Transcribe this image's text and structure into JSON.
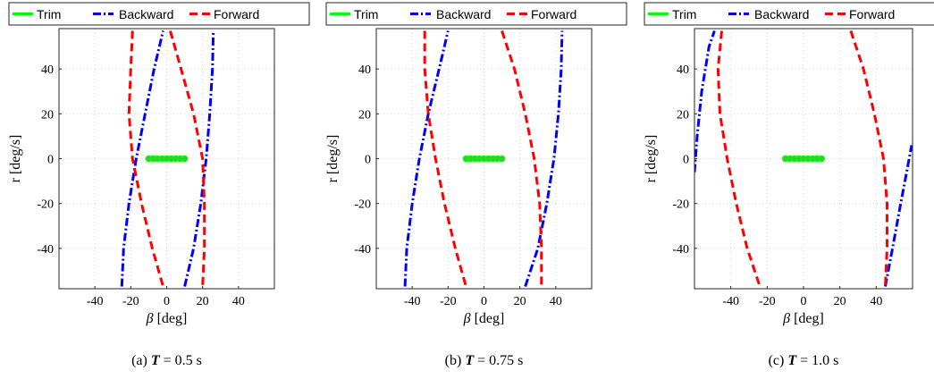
{
  "chart_data": [
    {
      "type": "line",
      "caption_prefix": "(a)",
      "caption_var": "T",
      "caption_rest": " = 0.5 s",
      "xlabel_sym": "β",
      "xlabel_unit": " [deg]",
      "ylabel": "r [deg/s]",
      "xlim": [
        -60,
        60
      ],
      "ylim": [
        -58,
        58
      ],
      "xticks": [
        -40,
        -20,
        0,
        20,
        40
      ],
      "yticks": [
        -40,
        -20,
        0,
        20,
        40
      ],
      "grid": true,
      "legend_position": "top",
      "series": [
        {
          "name": "Trim",
          "color": "#00ff00",
          "style": "solid",
          "points": [
            [
              -10,
              0
            ],
            [
              10,
              0
            ]
          ]
        },
        {
          "name": "Backward",
          "color": "#0000ff",
          "style": "dashdot",
          "curves": [
            [
              [
                -25,
                -57
              ],
              [
                -24,
                -40
              ],
              [
                -21,
                -20
              ],
              [
                -17,
                0
              ],
              [
                -12,
                20
              ],
              [
                -7,
                40
              ],
              [
                -2,
                57
              ]
            ],
            [
              [
                10,
                -57
              ],
              [
                15,
                -40
              ],
              [
                19,
                -20
              ],
              [
                22,
                0
              ],
              [
                24,
                20
              ],
              [
                25.5,
                40
              ],
              [
                26,
                57
              ]
            ]
          ]
        },
        {
          "name": "Forward",
          "color": "#ff0000",
          "style": "dashed",
          "curves": [
            [
              [
                -19,
                57
              ],
              [
                -20,
                40
              ],
              [
                -21,
                20
              ],
              [
                -19,
                0
              ],
              [
                -14,
                -20
              ],
              [
                -8,
                -40
              ],
              [
                -2,
                -57
              ]
            ],
            [
              [
                2,
                57
              ],
              [
                8,
                40
              ],
              [
                15,
                20
              ],
              [
                20,
                0
              ],
              [
                21,
                -20
              ],
              [
                21,
                -40
              ],
              [
                20,
                -57
              ]
            ]
          ]
        }
      ]
    },
    {
      "type": "line",
      "caption_prefix": "(b)",
      "caption_var": "T",
      "caption_rest": " = 0.75 s",
      "xlabel_sym": "β",
      "xlabel_unit": " [deg]",
      "ylabel": "r [deg/s]",
      "xlim": [
        -60,
        60
      ],
      "ylim": [
        -58,
        58
      ],
      "xticks": [
        -40,
        -20,
        0,
        20,
        40
      ],
      "yticks": [
        -40,
        -20,
        0,
        20,
        40
      ],
      "grid": true,
      "legend_position": "top",
      "series": [
        {
          "name": "Trim",
          "color": "#00ff00",
          "style": "solid",
          "points": [
            [
              -10,
              0
            ],
            [
              10,
              0
            ]
          ]
        },
        {
          "name": "Backward",
          "color": "#0000ff",
          "style": "dashdot",
          "curves": [
            [
              [
                -44,
                -57
              ],
              [
                -43,
                -40
              ],
              [
                -40,
                -20
              ],
              [
                -36,
                0
              ],
              [
                -31,
                20
              ],
              [
                -25,
                40
              ],
              [
                -20,
                57
              ]
            ],
            [
              [
                23,
                -57
              ],
              [
                30,
                -40
              ],
              [
                35,
                -20
              ],
              [
                39,
                0
              ],
              [
                41.5,
                20
              ],
              [
                43,
                40
              ],
              [
                43.5,
                57
              ]
            ]
          ]
        },
        {
          "name": "Forward",
          "color": "#ff0000",
          "style": "dashed",
          "curves": [
            [
              [
                -33,
                57
              ],
              [
                -33,
                40
              ],
              [
                -31,
                20
              ],
              [
                -27,
                0
              ],
              [
                -22,
                -20
              ],
              [
                -16,
                -40
              ],
              [
                -10,
                -57
              ]
            ],
            [
              [
                10,
                57
              ],
              [
                17,
                40
              ],
              [
                23,
                20
              ],
              [
                28,
                0
              ],
              [
                31,
                -20
              ],
              [
                32,
                -40
              ],
              [
                32,
                -57
              ]
            ]
          ]
        }
      ]
    },
    {
      "type": "line",
      "caption_prefix": "(c)",
      "caption_var": "T",
      "caption_rest": " = 1.0 s",
      "xlabel_sym": "β",
      "xlabel_unit": " [deg]",
      "ylabel": "r [deg/s]",
      "xlim": [
        -60,
        60
      ],
      "ylim": [
        -58,
        58
      ],
      "xticks": [
        -40,
        -20,
        0,
        20,
        40
      ],
      "yticks": [
        -40,
        -20,
        0,
        20,
        40
      ],
      "grid": true,
      "legend_position": "top",
      "series": [
        {
          "name": "Trim",
          "color": "#00ff00",
          "style": "solid",
          "points": [
            [
              -10,
              0
            ],
            [
              10,
              0
            ]
          ]
        },
        {
          "name": "Backward",
          "color": "#0000ff",
          "style": "dashdot",
          "curves": [
            [
              [
                -60,
                -6
              ],
              [
                -58.5,
                10
              ],
              [
                -56,
                30
              ],
              [
                -52,
                50
              ],
              [
                -49,
                57
              ]
            ],
            [
              [
                45,
                -57
              ],
              [
                49,
                -40
              ],
              [
                53,
                -22
              ],
              [
                57,
                -5
              ],
              [
                59.5,
                6
              ]
            ]
          ]
        },
        {
          "name": "Forward",
          "color": "#ff0000",
          "style": "dashed",
          "curves": [
            [
              [
                -45,
                57
              ],
              [
                -47,
                40
              ],
              [
                -46,
                20
              ],
              [
                -42,
                0
              ],
              [
                -37,
                -20
              ],
              [
                -31,
                -40
              ],
              [
                -24,
                -57
              ]
            ],
            [
              [
                26,
                57
              ],
              [
                33,
                40
              ],
              [
                39,
                20
              ],
              [
                44,
                0
              ],
              [
                46,
                -20
              ],
              [
                46,
                -40
              ],
              [
                45,
                -57
              ]
            ]
          ]
        }
      ]
    }
  ]
}
